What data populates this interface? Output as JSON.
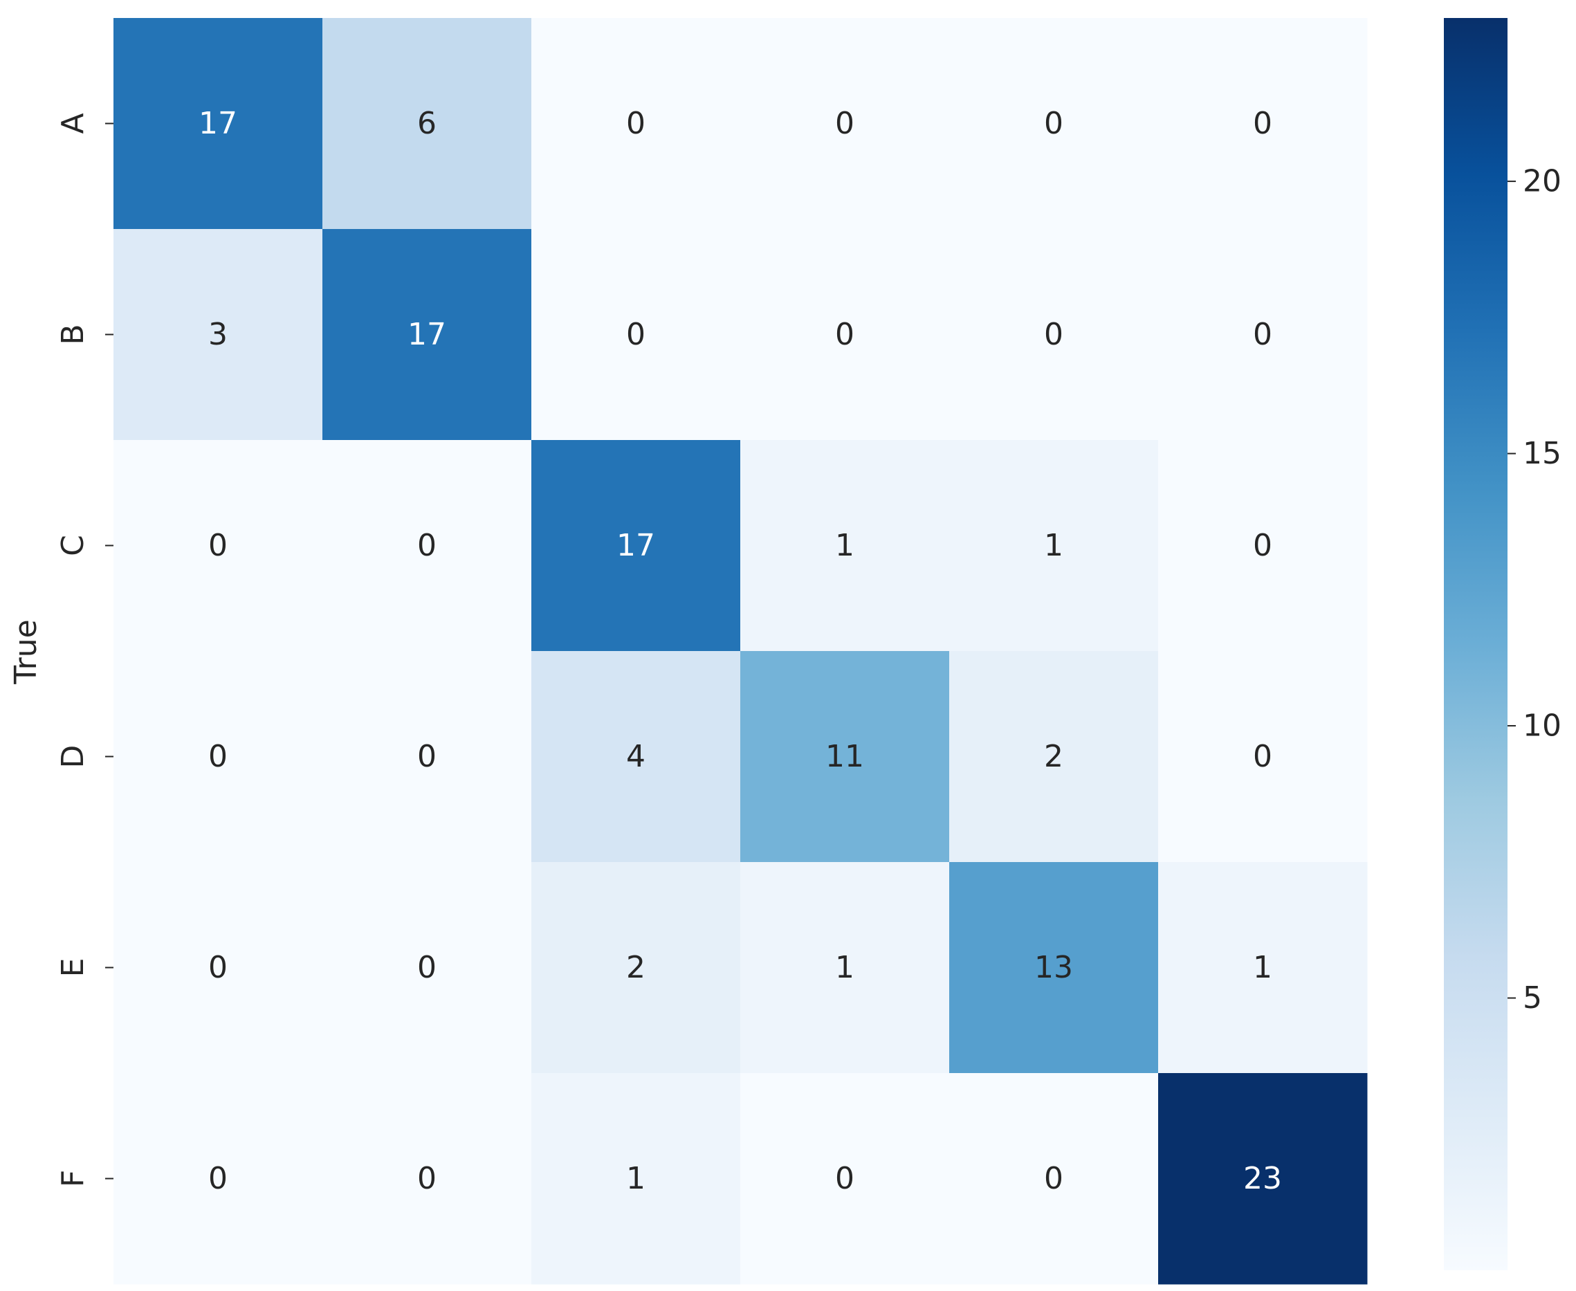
{
  "chart_data": {
    "type": "heatmap",
    "ylabel": "True",
    "xlabel": "",
    "row_labels": [
      "A",
      "B",
      "C",
      "D",
      "E",
      "F"
    ],
    "col_labels": [],
    "values": [
      [
        17,
        6,
        0,
        0,
        0,
        0
      ],
      [
        3,
        17,
        0,
        0,
        0,
        0
      ],
      [
        0,
        0,
        17,
        1,
        1,
        0
      ],
      [
        0,
        0,
        4,
        11,
        2,
        0
      ],
      [
        0,
        0,
        2,
        1,
        13,
        1
      ],
      [
        0,
        0,
        1,
        0,
        0,
        23
      ]
    ],
    "colormap": "Blues",
    "colorbar": {
      "vmin": 0,
      "vmax": 23,
      "ticks": [
        5,
        10,
        15,
        20
      ]
    },
    "annotated": true,
    "grid": false
  }
}
